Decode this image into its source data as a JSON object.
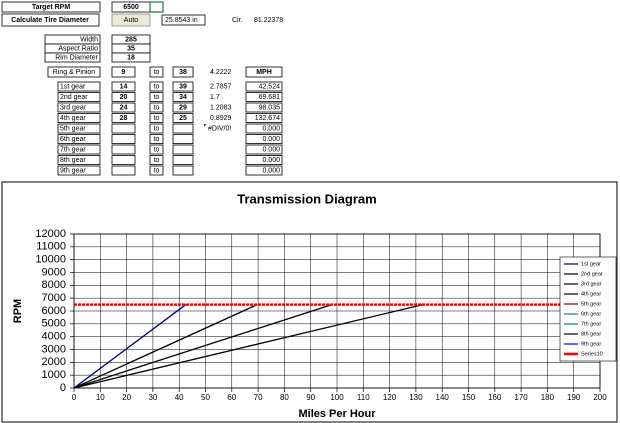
{
  "sheet": {
    "target_rpm": {
      "label": "Target RPM",
      "value": 6500
    },
    "tire": {
      "label": "Calculate Tire Diameter",
      "button": "Auto",
      "diameter": "25.8543  in",
      "cir_label": "Cir.",
      "cir": 81.22378
    },
    "tire_size": [
      {
        "label": "Width",
        "value": 285
      },
      {
        "label": "Aspect Ratio",
        "value": 35
      },
      {
        "label": "Rim Diameter",
        "value": 18
      }
    ],
    "ring_pinion": {
      "label": "Ring & Pinion",
      "a": 9,
      "to": "to",
      "b": 38,
      "ratio": 4.2222,
      "mph_header": "MPH"
    },
    "gears": [
      {
        "label": "1st gear",
        "a": 14,
        "to": "to",
        "b": 39,
        "ratio": 2.7857,
        "mph": "42.524"
      },
      {
        "label": "2nd gear",
        "a": 20,
        "to": "to",
        "b": 34,
        "ratio": 1.7,
        "mph": "69.681"
      },
      {
        "label": "3rd gear",
        "a": 24,
        "to": "to",
        "b": 29,
        "ratio": 1.2083,
        "mph": "98.035"
      },
      {
        "label": "4th gear",
        "a": 28,
        "to": "to",
        "b": 25,
        "ratio": 0.8929,
        "mph": "132.674"
      },
      {
        "label": "5th gear",
        "to": "to",
        "ratio": "#DIV/0!",
        "mph": "0.000"
      },
      {
        "label": "6th gear",
        "to": "to",
        "mph": "0.000"
      },
      {
        "label": "7th gear",
        "to": "to",
        "mph": "0.000"
      },
      {
        "label": "8th gear",
        "to": "to",
        "mph": "0.000"
      },
      {
        "label": "9th gear",
        "to": "to",
        "mph": "0.000"
      }
    ]
  },
  "chart_data": {
    "type": "line",
    "title": "Transmission Diagram",
    "x_label": "Miles Per Hour",
    "y_label": "RPM",
    "xlim": [
      0,
      200
    ],
    "xticks": [
      0,
      10,
      20,
      30,
      40,
      50,
      60,
      70,
      80,
      90,
      100,
      110,
      120,
      130,
      140,
      150,
      160,
      170,
      180,
      190,
      200
    ],
    "ylim": [
      0,
      12000
    ],
    "yticks": [
      0,
      1000,
      2000,
      3000,
      4000,
      5000,
      6000,
      7000,
      8000,
      9000,
      10000,
      11000,
      12000
    ],
    "grid": true,
    "legend": "right",
    "series": [
      {
        "name": "1st gear",
        "color": "#000080",
        "x": [
          0,
          42.524
        ],
        "values": [
          0,
          6500
        ]
      },
      {
        "name": "2nd gear",
        "color": "#000000",
        "x": [
          0,
          69.681
        ],
        "values": [
          0,
          6500
        ]
      },
      {
        "name": "3rd gear",
        "color": "#000000",
        "x": [
          0,
          98.035
        ],
        "values": [
          0,
          6500
        ]
      },
      {
        "name": "4th gear",
        "color": "#000000",
        "x": [
          0,
          132.674
        ],
        "values": [
          0,
          6500
        ]
      },
      {
        "name": "5th gear",
        "color": "#800000",
        "x": [],
        "values": []
      },
      {
        "name": "6th gear",
        "color": "#008080",
        "x": [],
        "values": []
      },
      {
        "name": "7th gear",
        "color": "#008080",
        "x": [],
        "values": []
      },
      {
        "name": "8th gear",
        "color": "#000000",
        "x": [],
        "values": []
      },
      {
        "name": "9th gear",
        "color": "#0000ff",
        "x": [],
        "values": []
      },
      {
        "name": "Series10",
        "color": "#ff0000",
        "x": [
          0,
          200
        ],
        "values": [
          6500,
          6500
        ]
      }
    ]
  }
}
